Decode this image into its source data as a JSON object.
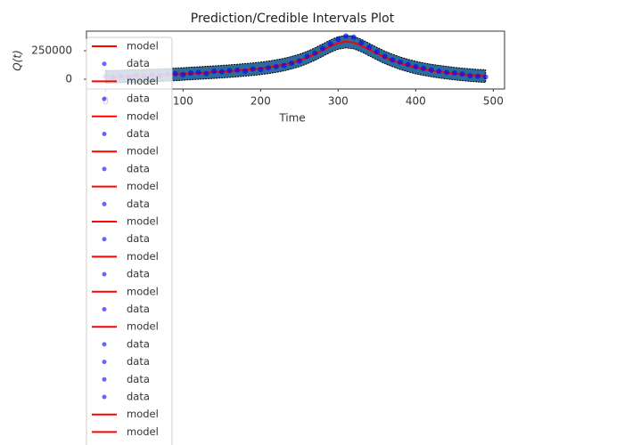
{
  "chart_data": {
    "type": "line",
    "title": "Prediction/Credible Intervals Plot",
    "xlabel": "Time",
    "ylabel": "Q(t)",
    "x": [
      0,
      10,
      20,
      30,
      40,
      50,
      60,
      70,
      80,
      90,
      100,
      110,
      120,
      130,
      140,
      150,
      160,
      170,
      180,
      190,
      200,
      210,
      220,
      230,
      240,
      250,
      260,
      270,
      280,
      290,
      300,
      310,
      320,
      330,
      340,
      350,
      360,
      370,
      380,
      390,
      400,
      410,
      420,
      430,
      440,
      450,
      460,
      470,
      480,
      490
    ],
    "interval": {
      "color": "#2c6b9c",
      "edge_color": "#000000",
      "lower": [
        -35000,
        -33000,
        -31000,
        -29000,
        -27000,
        -25000,
        -23000,
        -20000,
        -17000,
        -13000,
        -9000,
        -5000,
        -1000,
        3000,
        7000,
        11000,
        16000,
        21000,
        27000,
        33000,
        40000,
        49000,
        60000,
        73000,
        90000,
        110000,
        135000,
        165000,
        200000,
        235000,
        263000,
        275000,
        267000,
        240000,
        205000,
        170000,
        137000,
        110000,
        85000,
        65000,
        47000,
        33000,
        21000,
        11000,
        2000,
        -6000,
        -13000,
        -19000,
        -24000,
        -28000
      ],
      "upper": [
        75000,
        77000,
        79000,
        81000,
        83000,
        85000,
        87000,
        90000,
        93000,
        97000,
        101000,
        105000,
        109000,
        113000,
        117000,
        121000,
        126000,
        131000,
        137000,
        143000,
        150000,
        159000,
        170000,
        183000,
        200000,
        220000,
        245000,
        275000,
        310000,
        345000,
        373000,
        385000,
        377000,
        350000,
        315000,
        280000,
        247000,
        220000,
        195000,
        175000,
        157000,
        143000,
        131000,
        121000,
        112000,
        104000,
        97000,
        91000,
        86000,
        82000
      ]
    },
    "series": [
      {
        "name": "model",
        "mode": "line",
        "color": "#ff0000",
        "values": [
          20000,
          22000,
          24000,
          26000,
          28000,
          30000,
          32000,
          35000,
          38000,
          42000,
          46000,
          50000,
          54000,
          58000,
          62000,
          66000,
          71000,
          76000,
          82000,
          88000,
          95000,
          104000,
          115000,
          128000,
          145000,
          165000,
          190000,
          220000,
          255000,
          290000,
          318000,
          330000,
          322000,
          295000,
          260000,
          225000,
          192000,
          165000,
          140000,
          120000,
          102000,
          88000,
          76000,
          66000,
          57000,
          49000,
          42000,
          36000,
          31000,
          27000
        ]
      },
      {
        "name": "data",
        "mode": "markers",
        "color": "#0000ff",
        "values": [
          25000,
          15000,
          30000,
          20000,
          35000,
          25000,
          40000,
          30000,
          45000,
          50000,
          40000,
          55000,
          60000,
          50000,
          70000,
          65000,
          75000,
          80000,
          70000,
          90000,
          85000,
          100000,
          110000,
          120000,
          140000,
          160000,
          200000,
          230000,
          270000,
          310000,
          350000,
          380000,
          370000,
          320000,
          280000,
          240000,
          200000,
          170000,
          150000,
          130000,
          110000,
          95000,
          80000,
          70000,
          60000,
          55000,
          45000,
          30000,
          25000,
          20000
        ]
      }
    ],
    "xlim": [
      -24.5,
      514.5
    ],
    "ylim": [
      -86000,
      422000
    ],
    "xticks": [
      0,
      100,
      200,
      300,
      400,
      500
    ],
    "yticks": [
      0,
      250000
    ],
    "grid": false,
    "legend": {
      "loc": "upper left",
      "entries": [
        "model",
        "data",
        "model",
        "data",
        "model",
        "data",
        "model",
        "data",
        "model",
        "data",
        "model",
        "data",
        "model",
        "data",
        "model",
        "data",
        "model",
        "data",
        "data",
        "data",
        "data",
        "model",
        "model"
      ]
    }
  }
}
